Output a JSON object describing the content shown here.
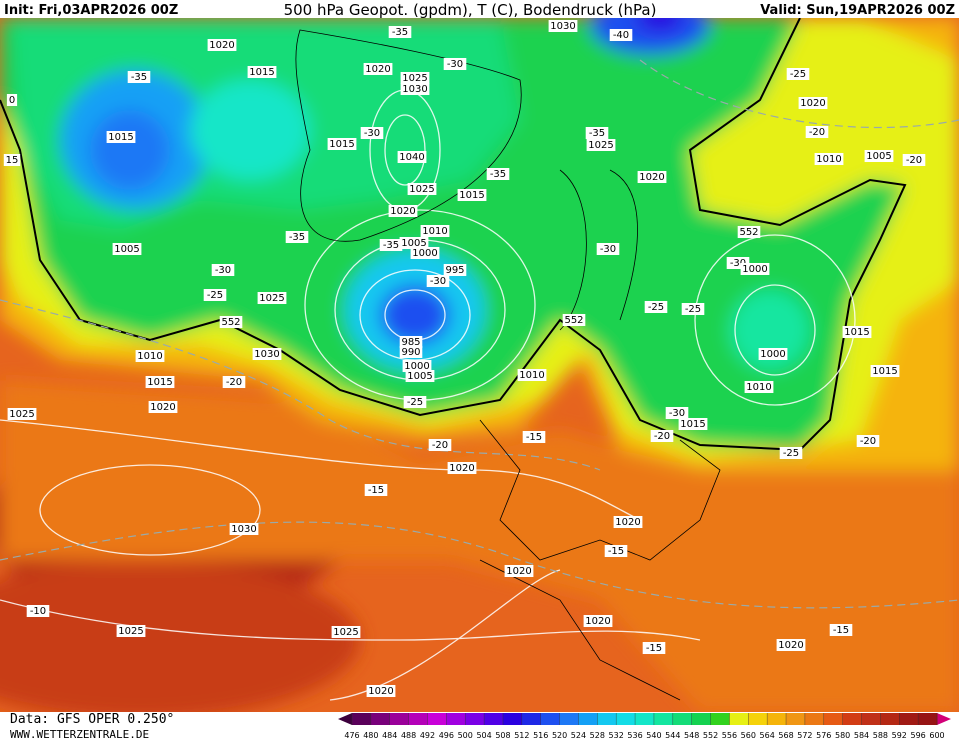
{
  "header": {
    "init": "Init: Fri,03APR2026 00Z",
    "title": "500 hPa Geopot. (gpdm), T (C), Bodendruck (hPa)",
    "valid": "Valid: Sun,19APR2026 00Z"
  },
  "footer": {
    "data_source": "Data: GFS OPER 0.250°",
    "site": "WWW.WETTERZENTRALE.DE"
  },
  "isobar_labels": [
    "1020",
    "1015",
    "-35",
    "1015",
    "-35",
    "1020",
    "-30",
    "1025",
    "1030",
    "-30",
    "1015",
    "1040",
    "1025",
    "1020",
    "1015",
    "-35",
    "-35",
    "1025",
    "1030",
    "-40",
    "-35",
    "1005",
    "1010",
    "1005",
    "-35",
    "1000",
    "995",
    "-30",
    "-30",
    "-25",
    "1025",
    "552",
    "1010",
    "1030",
    "1015",
    "-20",
    "1020",
    "1025",
    "-25",
    "1010",
    "552",
    "-30",
    "1020",
    "552",
    "-30",
    "1000",
    "-25",
    "-25",
    "1015",
    "1000",
    "1015",
    "1010",
    "-30",
    "1015",
    "-20",
    "-25",
    "-20",
    "-20",
    "1020",
    "-15",
    "-15",
    "1030",
    "1020",
    "-15",
    "1020",
    "-10",
    "1025",
    "1025",
    "1020",
    "-15",
    "1020",
    "-15",
    "1020",
    "-25",
    "1020",
    "-20",
    "1010",
    "1005",
    "-20",
    "0",
    "15",
    "985",
    "990",
    "1000",
    "1005"
  ],
  "colorbar": {
    "ticks": [
      476,
      480,
      484,
      488,
      492,
      496,
      500,
      504,
      508,
      512,
      516,
      520,
      524,
      528,
      532,
      536,
      540,
      544,
      548,
      552,
      556,
      560,
      564,
      568,
      572,
      576,
      580,
      584,
      588,
      592,
      596,
      600
    ],
    "colors": [
      "#5a005a",
      "#78007a",
      "#9a009a",
      "#b400b8",
      "#c800d8",
      "#a000e0",
      "#7a00e6",
      "#5000e6",
      "#2a00e0",
      "#1e28e6",
      "#1e50f0",
      "#1e78f5",
      "#14a0f5",
      "#14c8f0",
      "#14dce6",
      "#14e6c8",
      "#14e6a0",
      "#14dc78",
      "#14d250",
      "#32d21e",
      "#e6f014",
      "#f5d20a",
      "#f5b40a",
      "#f09614",
      "#eb7814",
      "#e65a14",
      "#d23c14",
      "#c03018",
      "#b42814",
      "#a01a14",
      "#961414"
    ],
    "under_color": "#3c003c",
    "over_color": "#d20078"
  }
}
